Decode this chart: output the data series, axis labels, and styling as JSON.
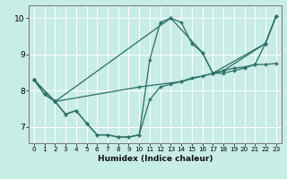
{
  "xlabel": "Humidex (Indice chaleur)",
  "bg_color": "#c8ece6",
  "grid_color": "#ffffff",
  "line_color": "#2a6e64",
  "xlim": [
    -0.5,
    23.5
  ],
  "ylim": [
    6.55,
    10.35
  ],
  "xticks": [
    0,
    1,
    2,
    3,
    4,
    5,
    6,
    7,
    8,
    9,
    10,
    11,
    12,
    13,
    14,
    15,
    16,
    17,
    18,
    19,
    20,
    21,
    22,
    23
  ],
  "yticks": [
    7,
    8,
    9,
    10
  ],
  "line1_x": [
    0,
    1,
    2,
    3,
    4,
    5,
    6,
    7,
    8,
    9,
    10,
    11,
    12,
    13,
    14,
    15,
    16,
    17,
    18,
    19,
    20,
    21,
    22,
    23
  ],
  "line1_y": [
    8.3,
    7.9,
    7.7,
    7.35,
    7.45,
    7.1,
    6.78,
    6.78,
    6.72,
    6.72,
    6.78,
    7.75,
    8.1,
    8.18,
    8.25,
    8.35,
    8.4,
    8.48,
    8.55,
    8.62,
    8.65,
    8.72,
    8.72,
    8.75
  ],
  "line2_x": [
    0,
    1,
    2,
    3,
    4,
    5,
    6,
    7,
    8,
    9,
    10,
    11,
    12,
    13,
    14,
    15,
    16,
    17,
    18,
    19,
    20,
    21,
    22,
    23
  ],
  "line2_y": [
    8.3,
    7.9,
    7.7,
    7.35,
    7.45,
    7.1,
    6.78,
    6.78,
    6.72,
    6.72,
    6.78,
    8.85,
    9.88,
    10.0,
    9.88,
    9.3,
    9.05,
    8.48,
    8.48,
    8.55,
    8.62,
    8.72,
    9.3,
    10.05
  ],
  "line3_x": [
    0,
    2,
    10,
    14,
    18,
    22,
    23
  ],
  "line3_y": [
    8.3,
    7.7,
    8.1,
    8.25,
    8.55,
    9.3,
    10.05
  ],
  "line4_x": [
    0,
    2,
    13,
    16,
    17,
    22,
    23
  ],
  "line4_y": [
    8.3,
    7.7,
    10.0,
    9.05,
    8.48,
    9.3,
    10.05
  ]
}
